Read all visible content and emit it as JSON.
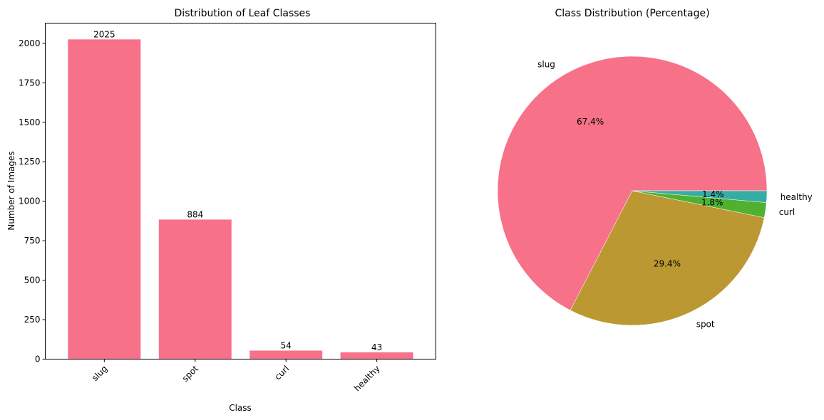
{
  "chart_data": [
    {
      "type": "bar",
      "title": "Distribution of Leaf Classes",
      "xlabel": "Class",
      "ylabel": "Number of Images",
      "categories": [
        "slug",
        "spot",
        "curl",
        "healthy"
      ],
      "values": [
        2025,
        884,
        54,
        43
      ],
      "bar_labels": [
        "2025",
        "884",
        "54",
        "43"
      ],
      "yticks": [
        0,
        250,
        500,
        750,
        1000,
        1250,
        1500,
        1750,
        2000
      ],
      "ylim": [
        0,
        2128
      ],
      "xtick_rotation": 45,
      "grid": false,
      "color": "#F77189"
    },
    {
      "type": "pie",
      "title": "Class Distribution (Percentage)",
      "labels": [
        "slug",
        "spot",
        "curl",
        "healthy"
      ],
      "values": [
        67.4,
        29.4,
        1.8,
        1.4
      ],
      "autopct_labels": [
        "67.4%",
        "29.4%",
        "1.8%",
        "1.4%"
      ],
      "colors": [
        "#F77189",
        "#BB9832",
        "#50B131",
        "#36ADA4"
      ],
      "startangle": 0,
      "counterclock": true
    }
  ]
}
